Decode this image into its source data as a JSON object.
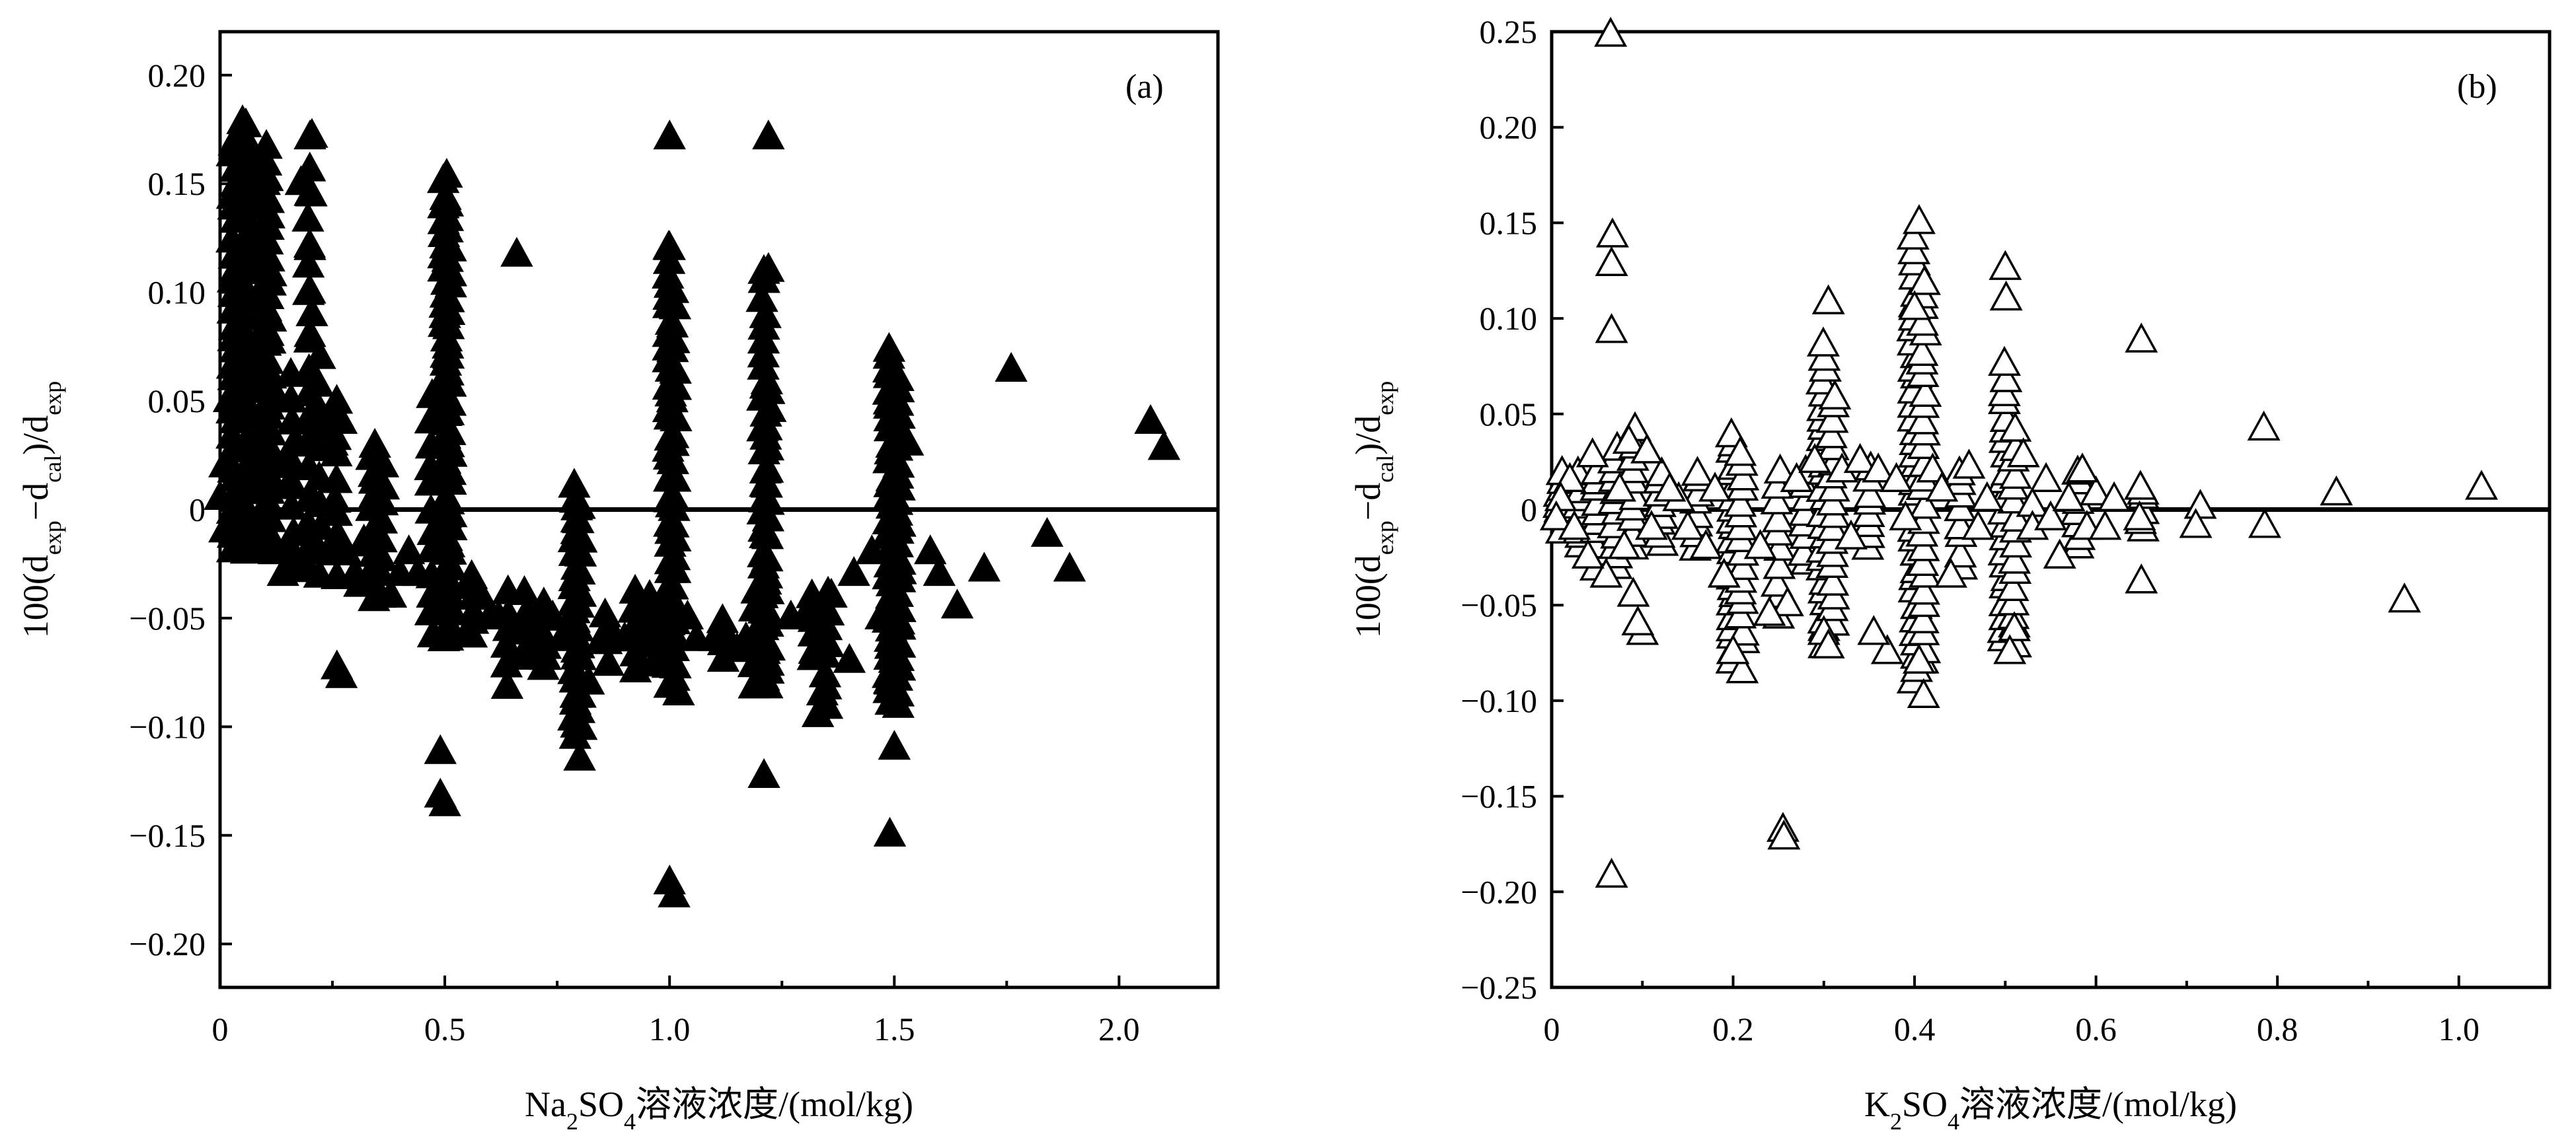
{
  "chart_data": [
    {
      "id": "a",
      "type": "scatter",
      "panel_label": "(a)",
      "marker": "filled-triangle",
      "marker_color": "#000000",
      "xlabel": {
        "pre": "Na",
        "sub1": "2",
        "mid": "SO",
        "sub2": "4",
        "post": "溶液浓度/(mol/kg)"
      },
      "ylabel": {
        "pre": "100(d",
        "s1": "exp",
        "m1": "−d",
        "s2": "cal",
        "m2": ")/d",
        "s3": "exp"
      },
      "xlim": [
        0,
        2.22
      ],
      "ylim": [
        -0.22,
        0.22
      ],
      "xticks": [
        0,
        0.5,
        1.0,
        1.5,
        2.0
      ],
      "xtick_labels": [
        "0",
        "0.5",
        "1.0",
        "1.5",
        "2.0"
      ],
      "yticks": [
        -0.2,
        -0.15,
        -0.1,
        -0.05,
        0,
        0.05,
        0.1,
        0.15,
        0.2
      ],
      "ytick_labels": [
        "−0.20",
        "−0.15",
        "−0.10",
        "−0.05",
        "0",
        "0.05",
        "0.10",
        "0.15",
        "0.20"
      ],
      "reference_line_y": 0,
      "grid": false,
      "columns": [
        {
          "x": 0.03,
          "ymin": -0.02,
          "ymax": 0.17,
          "n": 30
        },
        {
          "x": 0.06,
          "ymin": -0.02,
          "ymax": 0.175,
          "n": 30
        },
        {
          "x": 0.1,
          "ymin": -0.02,
          "ymax": 0.165,
          "n": 34
        },
        {
          "x": 0.11,
          "ymin": -0.02,
          "ymax": 0.15,
          "n": 26
        },
        {
          "x": 0.16,
          "ymin": -0.03,
          "ymax": 0.06,
          "n": 10
        },
        {
          "x": 0.2,
          "ymin": -0.03,
          "ymax": 0.17,
          "n": 18
        },
        {
          "x": 0.22,
          "ymin": -0.03,
          "ymax": 0.07,
          "n": 10
        },
        {
          "x": 0.26,
          "ymin": -0.03,
          "ymax": 0.05,
          "n": 10
        },
        {
          "x": 0.34,
          "ymin": -0.04,
          "ymax": 0.03,
          "n": 12
        },
        {
          "x": 0.36,
          "ymin": -0.04,
          "ymax": 0.02,
          "n": 8
        },
        {
          "x": 0.47,
          "ymin": -0.06,
          "ymax": 0.05,
          "n": 12
        },
        {
          "x": 0.5,
          "ymin": -0.06,
          "ymax": 0.155,
          "n": 40
        },
        {
          "x": 0.51,
          "ymin": -0.06,
          "ymax": 0.14,
          "n": 32
        },
        {
          "x": 0.56,
          "ymin": -0.06,
          "ymax": -0.03,
          "n": 6
        },
        {
          "x": 0.64,
          "ymin": -0.08,
          "ymax": -0.04,
          "n": 6
        },
        {
          "x": 0.68,
          "ymin": -0.07,
          "ymax": -0.04,
          "n": 6
        },
        {
          "x": 0.72,
          "ymin": -0.075,
          "ymax": -0.045,
          "n": 6
        },
        {
          "x": 0.79,
          "ymin": -0.1,
          "ymax": 0.01,
          "n": 22
        },
        {
          "x": 0.8,
          "ymin": -0.1,
          "ymax": 0.0,
          "n": 14
        },
        {
          "x": 0.86,
          "ymin": -0.07,
          "ymax": -0.05,
          "n": 4
        },
        {
          "x": 0.92,
          "ymin": -0.075,
          "ymax": -0.04,
          "n": 6
        },
        {
          "x": 0.96,
          "ymin": -0.07,
          "ymax": -0.04,
          "n": 6
        },
        {
          "x": 1.0,
          "ymin": -0.08,
          "ymax": 0.12,
          "n": 36
        },
        {
          "x": 1.01,
          "ymin": -0.08,
          "ymax": 0.1,
          "n": 26
        },
        {
          "x": 1.12,
          "ymin": -0.07,
          "ymax": -0.05,
          "n": 4
        },
        {
          "x": 1.19,
          "ymin": -0.08,
          "ymax": -0.04,
          "n": 6
        },
        {
          "x": 1.21,
          "ymin": -0.08,
          "ymax": 0.11,
          "n": 30
        },
        {
          "x": 1.22,
          "ymin": -0.08,
          "ymax": 0.06,
          "n": 18
        },
        {
          "x": 1.32,
          "ymin": -0.07,
          "ymax": -0.04,
          "n": 6
        },
        {
          "x": 1.35,
          "ymin": -0.09,
          "ymax": -0.04,
          "n": 8
        },
        {
          "x": 1.49,
          "ymin": -0.09,
          "ymax": 0.075,
          "n": 34
        },
        {
          "x": 1.51,
          "ymin": -0.09,
          "ymax": 0.06,
          "n": 28
        }
      ],
      "points": [
        [
          0.05,
          0.178
        ],
        [
          0.04,
          0.172
        ],
        [
          0.07,
          0.165
        ],
        [
          0.2,
          0.171
        ],
        [
          1.0,
          0.171
        ],
        [
          1.22,
          0.171
        ],
        [
          0.04,
          0.11
        ],
        [
          0.18,
          0.15
        ],
        [
          0.2,
          0.145
        ],
        [
          0.2,
          0.12
        ],
        [
          0.2,
          0.1
        ],
        [
          0.2,
          0.08
        ],
        [
          0.66,
          0.117
        ],
        [
          1.0,
          0.12
        ],
        [
          1.22,
          0.11
        ],
        [
          1.76,
          0.064
        ],
        [
          2.07,
          0.04
        ],
        [
          2.1,
          0.028
        ],
        [
          0.26,
          -0.073
        ],
        [
          0.27,
          -0.077
        ],
        [
          0.49,
          -0.112
        ],
        [
          0.49,
          -0.132
        ],
        [
          0.5,
          -0.136
        ],
        [
          1.0,
          -0.172
        ],
        [
          1.01,
          -0.178
        ],
        [
          1.21,
          -0.123
        ],
        [
          1.49,
          -0.15
        ],
        [
          1.5,
          -0.11
        ],
        [
          0.8,
          -0.115
        ],
        [
          0.79,
          -0.105
        ],
        [
          1.49,
          -0.08
        ],
        [
          1.5,
          -0.07
        ],
        [
          1.4,
          -0.07
        ],
        [
          1.33,
          -0.095
        ],
        [
          1.34,
          -0.085
        ],
        [
          1.22,
          -0.075
        ],
        [
          1.02,
          -0.085
        ],
        [
          0.85,
          -0.06
        ],
        [
          1.58,
          -0.02
        ],
        [
          1.6,
          -0.03
        ],
        [
          1.64,
          -0.045
        ],
        [
          1.7,
          -0.028
        ],
        [
          1.84,
          -0.012
        ],
        [
          1.89,
          -0.028
        ],
        [
          1.53,
          0.03
        ],
        [
          1.47,
          -0.05
        ],
        [
          1.45,
          -0.02
        ],
        [
          1.41,
          -0.03
        ],
        [
          1.36,
          -0.04
        ],
        [
          1.3,
          -0.05
        ],
        [
          1.27,
          -0.05
        ],
        [
          1.17,
          -0.06
        ],
        [
          1.15,
          -0.065
        ],
        [
          1.1,
          -0.06
        ],
        [
          1.06,
          -0.06
        ],
        [
          1.04,
          -0.05
        ],
        [
          0.95,
          -0.05
        ],
        [
          0.9,
          -0.06
        ],
        [
          0.88,
          -0.06
        ],
        [
          0.82,
          -0.08
        ],
        [
          0.76,
          -0.06
        ],
        [
          0.74,
          -0.05
        ],
        [
          0.7,
          -0.06
        ],
        [
          0.62,
          -0.05
        ],
        [
          0.6,
          -0.05
        ],
        [
          0.58,
          -0.04
        ],
        [
          0.44,
          -0.03
        ],
        [
          0.42,
          -0.02
        ],
        [
          0.4,
          -0.03
        ],
        [
          0.38,
          -0.04
        ],
        [
          0.3,
          -0.03
        ],
        [
          0.28,
          -0.02
        ],
        [
          0.24,
          -0.02
        ],
        [
          0.14,
          -0.03
        ],
        [
          0.14,
          0.02
        ],
        [
          0.13,
          0.05
        ],
        [
          0.15,
          0.01
        ],
        [
          0.17,
          0.03
        ],
        [
          0.21,
          0.03
        ],
        [
          0.23,
          0.04
        ],
        [
          0.25,
          0.03
        ],
        [
          0.27,
          0.04
        ],
        [
          0.08,
          0.02
        ],
        [
          0.09,
          0.08
        ],
        [
          0.02,
          0.05
        ],
        [
          0.01,
          0.02
        ],
        [
          0.01,
          -0.01
        ],
        [
          0.0,
          0.005
        ],
        [
          0.12,
          -0.02
        ],
        [
          0.18,
          -0.025
        ],
        [
          0.19,
          -0.01
        ],
        [
          0.31,
          -0.035
        ],
        [
          0.32,
          -0.015
        ]
      ]
    },
    {
      "id": "b",
      "type": "scatter",
      "panel_label": "(b)",
      "marker": "open-triangle",
      "marker_color": "#000000",
      "xlabel": {
        "pre": "K",
        "sub1": "2",
        "mid": "SO",
        "sub2": "4",
        "post": "溶液浓度/(mol/kg)"
      },
      "ylabel": {
        "pre": "100(d",
        "s1": "exp",
        "m1": "−d",
        "s2": "cal",
        "m2": ")/d",
        "s3": "exp"
      },
      "xlim": [
        0,
        1.1
      ],
      "ylim": [
        -0.25,
        0.25
      ],
      "xticks": [
        0,
        0.2,
        0.4,
        0.6,
        0.8,
        1.0
      ],
      "xtick_labels": [
        "0",
        "0.2",
        "0.4",
        "0.6",
        "0.8",
        "1.0"
      ],
      "yticks": [
        -0.25,
        -0.2,
        -0.15,
        -0.1,
        -0.05,
        0,
        0.05,
        0.1,
        0.15,
        0.2,
        0.25
      ],
      "ytick_labels": [
        "−0.25",
        "−0.20",
        "−0.15",
        "−0.10",
        "−0.05",
        "0",
        "0.05",
        "0.10",
        "0.15",
        "0.20",
        "0.25"
      ],
      "reference_line_y": 0,
      "grid": false,
      "columns": [
        {
          "x": 0.01,
          "ymin": -0.01,
          "ymax": 0.02,
          "n": 8
        },
        {
          "x": 0.03,
          "ymin": -0.02,
          "ymax": 0.02,
          "n": 10
        },
        {
          "x": 0.05,
          "ymin": -0.03,
          "ymax": 0.02,
          "n": 10
        },
        {
          "x": 0.07,
          "ymin": -0.03,
          "ymax": 0.03,
          "n": 12
        },
        {
          "x": 0.09,
          "ymin": -0.02,
          "ymax": 0.04,
          "n": 10
        },
        {
          "x": 0.12,
          "ymin": -0.02,
          "ymax": 0.02,
          "n": 8
        },
        {
          "x": 0.16,
          "ymin": -0.02,
          "ymax": 0.02,
          "n": 8
        },
        {
          "x": 0.2,
          "ymin": -0.08,
          "ymax": 0.04,
          "n": 22
        },
        {
          "x": 0.21,
          "ymin": -0.07,
          "ymax": 0.03,
          "n": 16
        },
        {
          "x": 0.25,
          "ymin": -0.055,
          "ymax": 0.02,
          "n": 10
        },
        {
          "x": 0.28,
          "ymin": -0.03,
          "ymax": 0.02,
          "n": 8
        },
        {
          "x": 0.3,
          "ymin": -0.07,
          "ymax": 0.085,
          "n": 26
        },
        {
          "x": 0.31,
          "ymin": -0.06,
          "ymax": 0.06,
          "n": 18
        },
        {
          "x": 0.35,
          "ymin": -0.02,
          "ymax": 0.02,
          "n": 8
        },
        {
          "x": 0.4,
          "ymin": -0.09,
          "ymax": 0.14,
          "n": 36
        },
        {
          "x": 0.41,
          "ymin": -0.08,
          "ymax": 0.12,
          "n": 28
        },
        {
          "x": 0.45,
          "ymin": -0.03,
          "ymax": 0.02,
          "n": 8
        },
        {
          "x": 0.5,
          "ymin": -0.07,
          "ymax": 0.075,
          "n": 22
        },
        {
          "x": 0.51,
          "ymin": -0.07,
          "ymax": 0.04,
          "n": 16
        },
        {
          "x": 0.58,
          "ymin": -0.02,
          "ymax": 0.02,
          "n": 8
        },
        {
          "x": 0.65,
          "ymin": -0.01,
          "ymax": 0.01,
          "n": 5
        }
      ],
      "points": [
        [
          0.065,
          0.248
        ],
        [
          0.067,
          0.143
        ],
        [
          0.066,
          0.128
        ],
        [
          0.066,
          0.093
        ],
        [
          0.066,
          -0.192
        ],
        [
          0.255,
          -0.168
        ],
        [
          0.256,
          -0.172
        ],
        [
          0.305,
          0.108
        ],
        [
          0.405,
          0.15
        ],
        [
          0.5,
          0.126
        ],
        [
          0.501,
          0.11
        ],
        [
          0.65,
          0.088
        ],
        [
          0.785,
          0.042
        ],
        [
          0.786,
          -0.009
        ],
        [
          0.865,
          0.008
        ],
        [
          0.94,
          -0.048
        ],
        [
          1.025,
          0.011
        ],
        [
          0.715,
          0.001
        ],
        [
          0.71,
          -0.009
        ],
        [
          0.65,
          -0.038
        ],
        [
          0.648,
          -0.005
        ],
        [
          0.649,
          0.011
        ],
        [
          0.6,
          0.008
        ],
        [
          0.59,
          -0.01
        ],
        [
          0.585,
          0.02
        ],
        [
          0.56,
          -0.025
        ],
        [
          0.545,
          0.015
        ],
        [
          0.53,
          0.002
        ],
        [
          0.52,
          0.028
        ],
        [
          0.51,
          -0.063
        ],
        [
          0.505,
          -0.075
        ],
        [
          0.46,
          0.022
        ],
        [
          0.44,
          -0.035
        ],
        [
          0.41,
          -0.098
        ],
        [
          0.405,
          -0.08
        ],
        [
          0.4,
          0.105
        ],
        [
          0.37,
          -0.075
        ],
        [
          0.355,
          -0.065
        ],
        [
          0.33,
          -0.015
        ],
        [
          0.3,
          -0.065
        ],
        [
          0.305,
          -0.072
        ],
        [
          0.26,
          -0.05
        ],
        [
          0.24,
          -0.055
        ],
        [
          0.21,
          -0.085
        ],
        [
          0.2,
          -0.075
        ],
        [
          0.19,
          -0.035
        ],
        [
          0.18,
          0.01
        ],
        [
          0.15,
          -0.01
        ],
        [
          0.14,
          0.005
        ],
        [
          0.11,
          -0.01
        ],
        [
          0.1,
          -0.065
        ],
        [
          0.095,
          -0.06
        ],
        [
          0.09,
          -0.045
        ],
        [
          0.085,
          0.035
        ],
        [
          0.08,
          -0.02
        ],
        [
          0.06,
          -0.035
        ],
        [
          0.04,
          -0.025
        ],
        [
          0.02,
          0.015
        ],
        [
          0.01,
          0.005
        ],
        [
          0.005,
          -0.005
        ],
        [
          0.025,
          -0.01
        ],
        [
          0.045,
          0.028
        ],
        [
          0.075,
          0.01
        ],
        [
          0.105,
          0.03
        ],
        [
          0.13,
          0.01
        ],
        [
          0.17,
          -0.02
        ],
        [
          0.23,
          -0.02
        ],
        [
          0.27,
          0.015
        ],
        [
          0.29,
          0.025
        ],
        [
          0.32,
          0.02
        ],
        [
          0.34,
          0.025
        ],
        [
          0.36,
          0.02
        ],
        [
          0.38,
          0.015
        ],
        [
          0.39,
          -0.005
        ],
        [
          0.42,
          0.02
        ],
        [
          0.43,
          0.01
        ],
        [
          0.47,
          -0.01
        ],
        [
          0.48,
          0.005
        ],
        [
          0.53,
          -0.01
        ],
        [
          0.55,
          -0.005
        ],
        [
          0.57,
          0.005
        ],
        [
          0.61,
          -0.01
        ],
        [
          0.62,
          0.005
        ]
      ]
    }
  ]
}
